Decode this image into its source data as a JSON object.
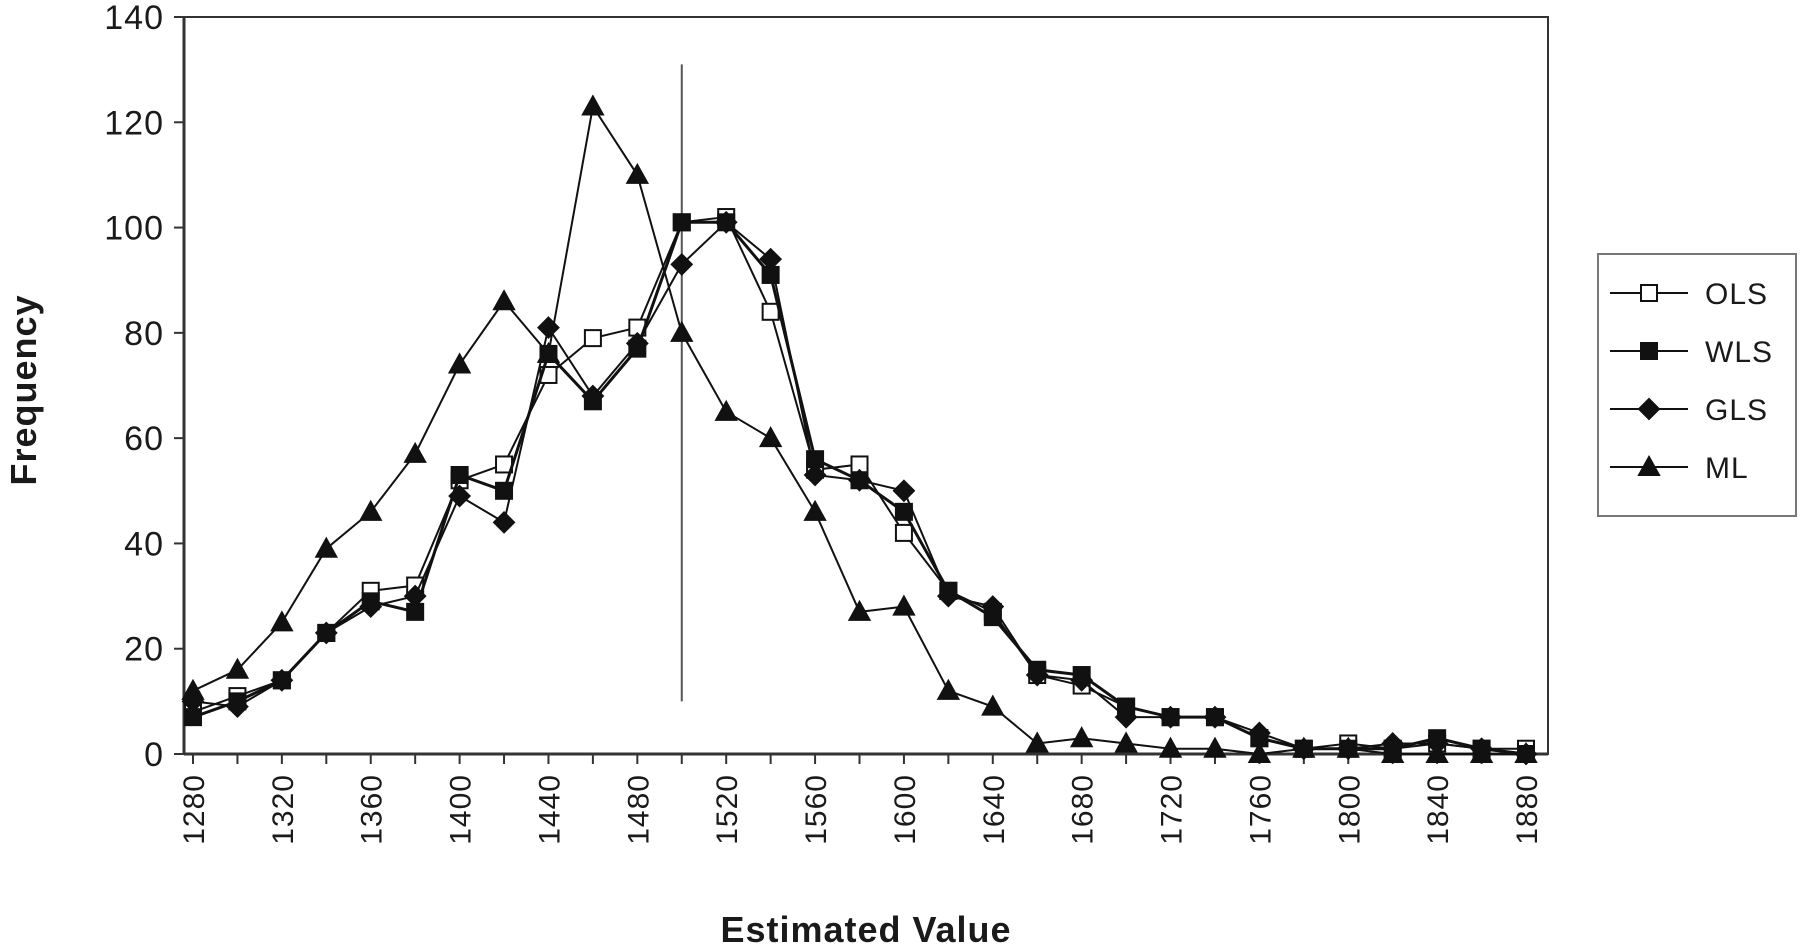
{
  "chart_data": {
    "type": "line",
    "title": "",
    "xlabel": "Estimated Value",
    "ylabel": "Frequency",
    "xlim": [
      1280,
      1880
    ],
    "ylim": [
      0,
      140
    ],
    "y_ticks": [
      "0",
      "20",
      "40",
      "60",
      "80",
      "100",
      "120",
      "140"
    ],
    "x_ticks": [
      "1280",
      "1320",
      "1360",
      "1400",
      "1440",
      "1480",
      "1520",
      "1560",
      "1600",
      "1640",
      "1680",
      "1720",
      "1760",
      "1800",
      "1840",
      "1880"
    ],
    "reference_line_x": 1500,
    "grid": false,
    "legend_position": "right",
    "x": [
      1280,
      1300,
      1320,
      1340,
      1360,
      1380,
      1400,
      1420,
      1440,
      1460,
      1480,
      1500,
      1520,
      1540,
      1560,
      1580,
      1600,
      1620,
      1640,
      1660,
      1680,
      1700,
      1720,
      1740,
      1760,
      1780,
      1800,
      1820,
      1840,
      1860,
      1880
    ],
    "series": [
      {
        "name": "OLS",
        "marker": "square-open",
        "values": [
          8,
          11,
          14,
          23,
          31,
          32,
          52,
          55,
          72,
          79,
          81,
          101,
          102,
          84,
          54,
          55,
          42,
          31,
          27,
          15,
          13,
          9,
          7,
          7,
          3,
          1,
          2,
          1,
          2,
          1,
          1
        ]
      },
      {
        "name": "WLS",
        "marker": "square-filled",
        "values": [
          7,
          10,
          14,
          23,
          29,
          27,
          53,
          50,
          76,
          67,
          77,
          101,
          101,
          91,
          56,
          52,
          46,
          31,
          26,
          16,
          15,
          9,
          7,
          7,
          3,
          1,
          1,
          1,
          3,
          1,
          0
        ]
      },
      {
        "name": "GLS",
        "marker": "diamond-filled",
        "values": [
          10,
          9,
          14,
          23,
          28,
          30,
          49,
          44,
          81,
          68,
          78,
          93,
          101,
          94,
          53,
          52,
          50,
          30,
          28,
          15,
          14,
          7,
          7,
          7,
          4,
          1,
          1,
          2,
          2,
          1,
          0
        ]
      },
      {
        "name": "ML",
        "marker": "triangle-filled",
        "values": [
          12,
          16,
          25,
          39,
          46,
          57,
          74,
          86,
          76,
          123,
          110,
          80,
          65,
          60,
          46,
          27,
          28,
          12,
          9,
          2,
          3,
          2,
          1,
          1,
          0,
          1,
          1,
          0,
          0,
          0,
          0
        ]
      }
    ]
  }
}
